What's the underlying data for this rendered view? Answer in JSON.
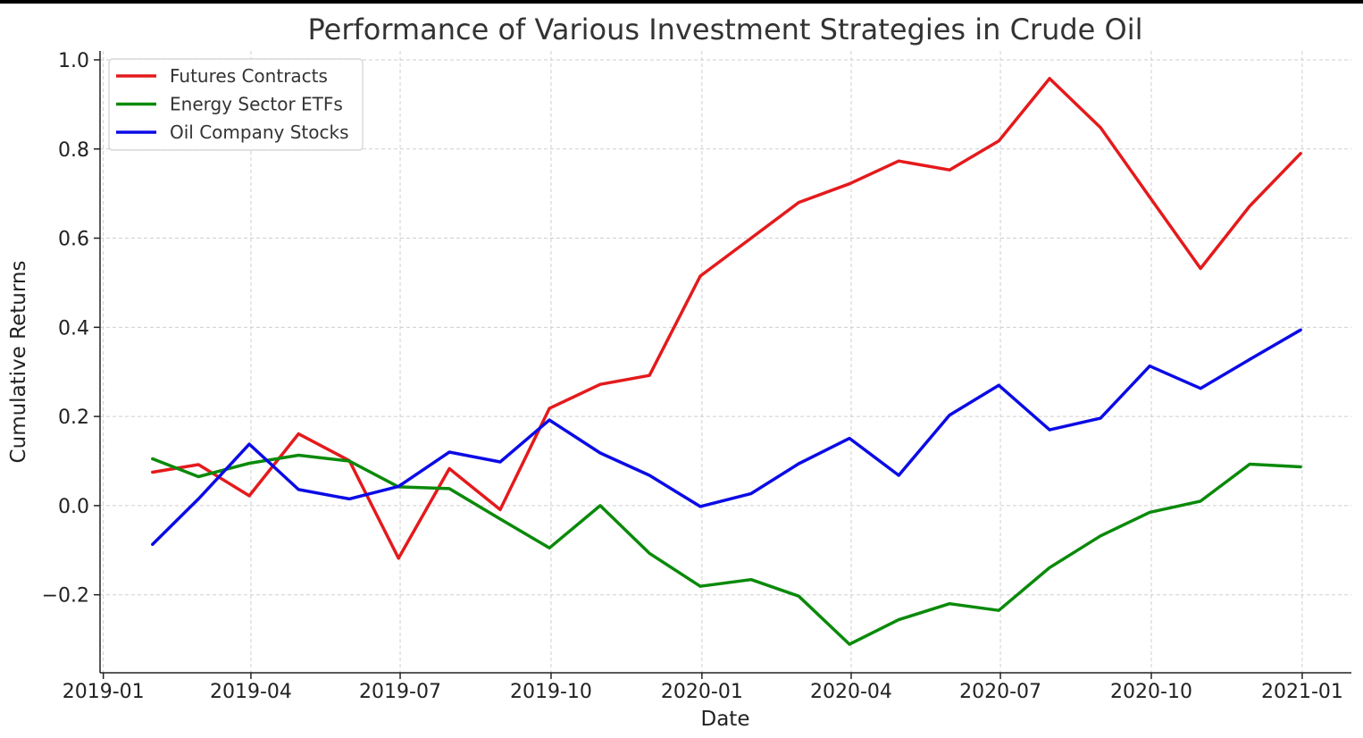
{
  "chart_data": {
    "type": "line",
    "title": "Performance of Various Investment Strategies in Crude Oil",
    "xlabel": "Date",
    "ylabel": "Cumulative Returns",
    "x": [
      "2019-01-31",
      "2019-02-28",
      "2019-03-31",
      "2019-04-30",
      "2019-05-31",
      "2019-06-30",
      "2019-07-31",
      "2019-08-31",
      "2019-09-30",
      "2019-10-31",
      "2019-11-30",
      "2019-12-31",
      "2020-01-31",
      "2020-02-29",
      "2020-03-31",
      "2020-04-30",
      "2020-05-31",
      "2020-06-30",
      "2020-07-31",
      "2020-08-31",
      "2020-09-30",
      "2020-10-31",
      "2020-11-30",
      "2020-12-31"
    ],
    "xticks": [
      "2019-01",
      "2019-04",
      "2019-07",
      "2019-10",
      "2020-01",
      "2020-04",
      "2020-07",
      "2020-10",
      "2021-01"
    ],
    "xlim": [
      "2018-12-30",
      "2021-01-31"
    ],
    "yticks": [
      1.0,
      0.8,
      0.6,
      0.4,
      0.2,
      0.0,
      -0.2
    ],
    "ytick_labels": [
      "1.0",
      "0.8",
      "0.6",
      "0.4",
      "0.2",
      "0.0",
      "−0.2"
    ],
    "ylim": [
      -0.375,
      1.02
    ],
    "grid": true,
    "legend_position": "top-left",
    "series": [
      {
        "name": "Futures Contracts",
        "color": "#e41a1c",
        "values": [
          0.075,
          0.092,
          0.022,
          0.161,
          0.101,
          -0.118,
          0.083,
          -0.009,
          0.218,
          0.272,
          0.292,
          0.515,
          0.6,
          0.68,
          0.722,
          0.773,
          0.753,
          0.818,
          0.958,
          0.848,
          0.692,
          0.532,
          0.672,
          0.79
        ]
      },
      {
        "name": "Energy Sector ETFs",
        "color": "#0a8a0a",
        "values": [
          0.105,
          0.065,
          0.095,
          0.113,
          0.1,
          0.042,
          0.038,
          -0.03,
          -0.095,
          0.0,
          -0.107,
          -0.181,
          -0.166,
          -0.203,
          -0.311,
          -0.256,
          -0.22,
          -0.235,
          -0.139,
          -0.068,
          -0.015,
          0.01,
          0.093,
          0.087
        ]
      },
      {
        "name": "Oil Company Stocks",
        "color": "#0b0be6",
        "values": [
          -0.087,
          0.015,
          0.138,
          0.036,
          0.015,
          0.043,
          0.12,
          0.098,
          0.192,
          0.118,
          0.068,
          -0.002,
          0.027,
          0.094,
          0.151,
          0.068,
          0.203,
          0.27,
          0.17,
          0.196,
          0.313,
          0.263,
          0.328,
          0.394
        ]
      }
    ]
  }
}
